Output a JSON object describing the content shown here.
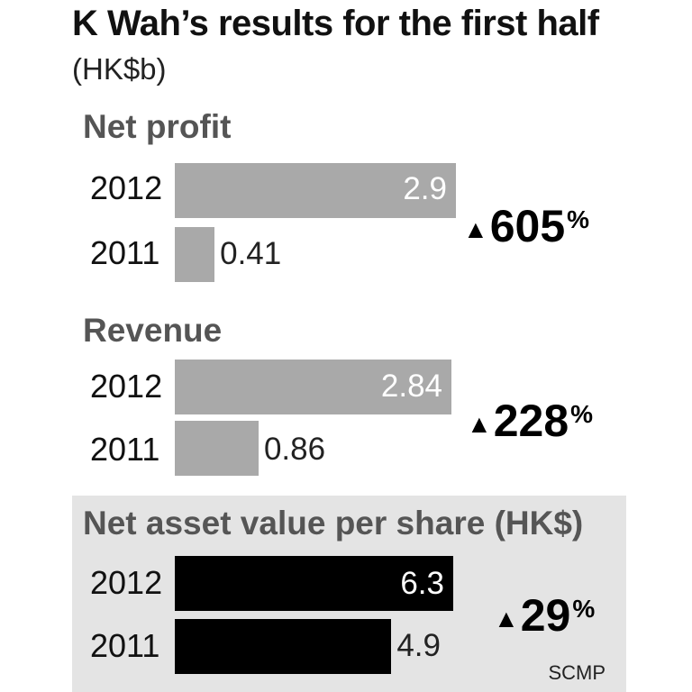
{
  "title": "K Wah’s results for the first half",
  "unit": "(HK$b)",
  "source": "SCMP",
  "chart_data": [
    {
      "type": "bar",
      "orientation": "horizontal",
      "title": "Net profit",
      "categories": [
        "2012",
        "2011"
      ],
      "values": [
        2.9,
        0.41
      ],
      "value_labels": [
        "2.9",
        "0.41"
      ],
      "change": "605",
      "change_unit": "%",
      "bar_color": "#a9a9a9"
    },
    {
      "type": "bar",
      "orientation": "horizontal",
      "title": "Revenue",
      "categories": [
        "2012",
        "2011"
      ],
      "values": [
        2.84,
        0.86
      ],
      "value_labels": [
        "2.84",
        "0.86"
      ],
      "change": "228",
      "change_unit": "%",
      "bar_color": "#a9a9a9"
    },
    {
      "type": "bar",
      "orientation": "horizontal",
      "title": "Net asset value per share (HK$)",
      "categories": [
        "2012",
        "2011"
      ],
      "values": [
        6.3,
        4.9
      ],
      "value_labels": [
        "6.3",
        "4.9"
      ],
      "change": "29",
      "change_unit": "%",
      "bar_color": "#000000"
    }
  ]
}
